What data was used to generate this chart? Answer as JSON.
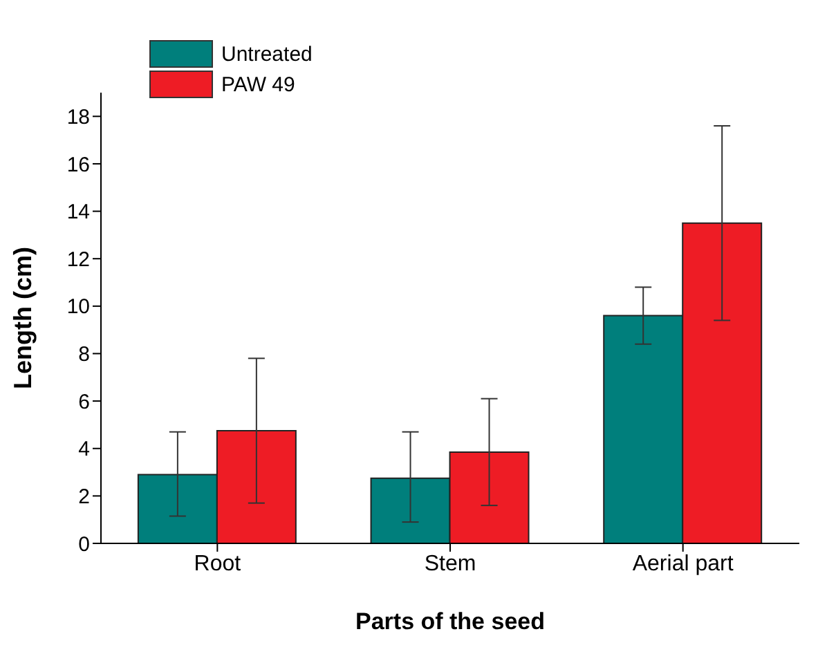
{
  "chart_data": {
    "type": "bar",
    "xlabel": "Parts of the seed",
    "ylabel": "Length (cm)",
    "categories": [
      "Root",
      "Stem",
      "Aerial part"
    ],
    "series": [
      {
        "name": "Untreated",
        "color": "#007f7c",
        "values": [
          2.9,
          2.75,
          9.6
        ],
        "errors": [
          [
            1.15,
            4.7
          ],
          [
            0.9,
            4.7
          ],
          [
            8.4,
            10.8
          ]
        ]
      },
      {
        "name": "PAW 49",
        "color": "#ee1c25",
        "values": [
          4.75,
          3.85,
          13.5
        ],
        "errors": [
          [
            1.7,
            7.8
          ],
          [
            1.6,
            6.1
          ],
          [
            9.4,
            17.6
          ]
        ]
      }
    ],
    "ylim": [
      0,
      19
    ],
    "yticks": [
      0,
      2,
      4,
      6,
      8,
      10,
      12,
      14,
      16,
      18
    ],
    "grid": false,
    "legend": "top left"
  }
}
